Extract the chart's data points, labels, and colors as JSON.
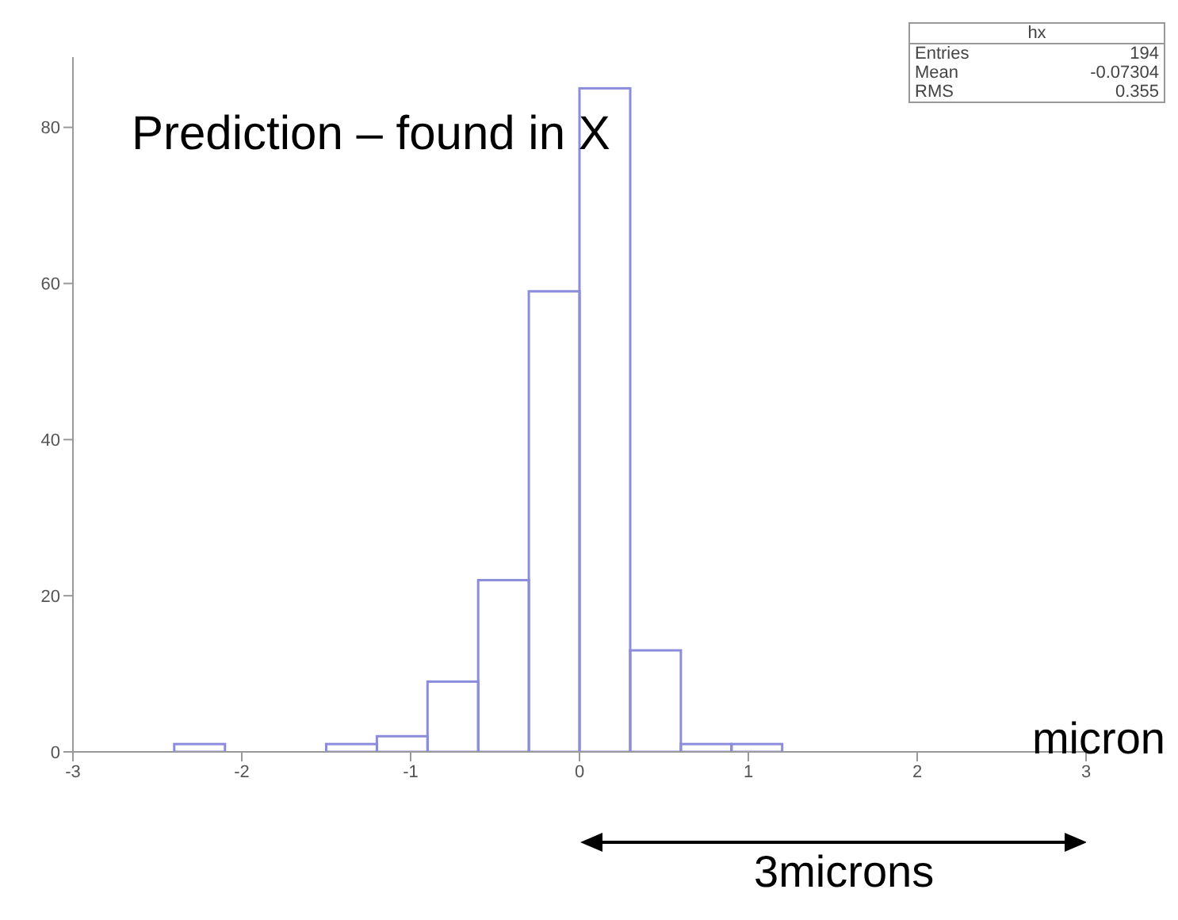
{
  "chart_data": {
    "type": "histogram",
    "xlabel": "micron",
    "bins": [
      -3,
      -2.7,
      -2.4,
      -2.1,
      -1.8,
      -1.5,
      -1.2,
      -0.9,
      -0.6,
      -0.3,
      0,
      0.3,
      0.6,
      0.9,
      1.2,
      1.5,
      1.8,
      2.1,
      2.4,
      2.7,
      3
    ],
    "values": [
      0,
      0,
      1,
      0,
      0,
      1,
      2,
      9,
      22,
      59,
      85,
      13,
      1,
      1,
      0,
      0,
      0,
      0,
      0,
      0
    ],
    "color": "#8c8cdc",
    "xlim": [
      -3,
      3
    ],
    "xticks": [
      -3,
      -2,
      -1,
      0,
      1,
      2,
      3
    ],
    "ylim": [
      0,
      89
    ],
    "yticks": [
      0,
      20,
      40,
      60,
      80
    ],
    "grid": false,
    "annotations": [
      "Prediction – found in X",
      "hx",
      "Entries 194",
      "Mean -0.07304",
      "RMS 0.355",
      "3microns"
    ]
  }
}
